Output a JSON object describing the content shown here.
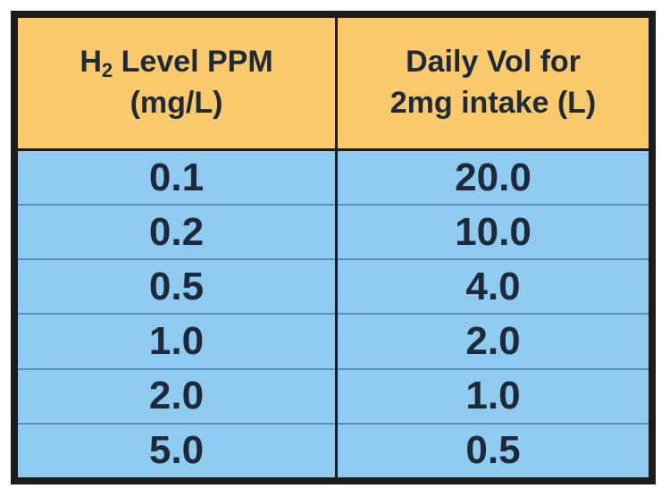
{
  "table": {
    "headers": [
      {
        "line1_pre": "H",
        "line1_sub": "2",
        "line1_post": " Level PPM",
        "line2": "(mg/L)"
      },
      {
        "line1": "Daily Vol for",
        "line2": "2mg intake (L)"
      }
    ],
    "rows": [
      [
        "0.1",
        "20.0"
      ],
      [
        "0.2",
        "10.0"
      ],
      [
        "0.5",
        "4.0"
      ],
      [
        "1.0",
        "2.0"
      ],
      [
        "2.0",
        "1.0"
      ],
      [
        "5.0",
        "0.5"
      ]
    ]
  },
  "colors": {
    "header_bg": "#f9c96b",
    "body_bg": "#8fcbf0",
    "border": "#1b1b1b",
    "text": "#1e2a3a"
  }
}
